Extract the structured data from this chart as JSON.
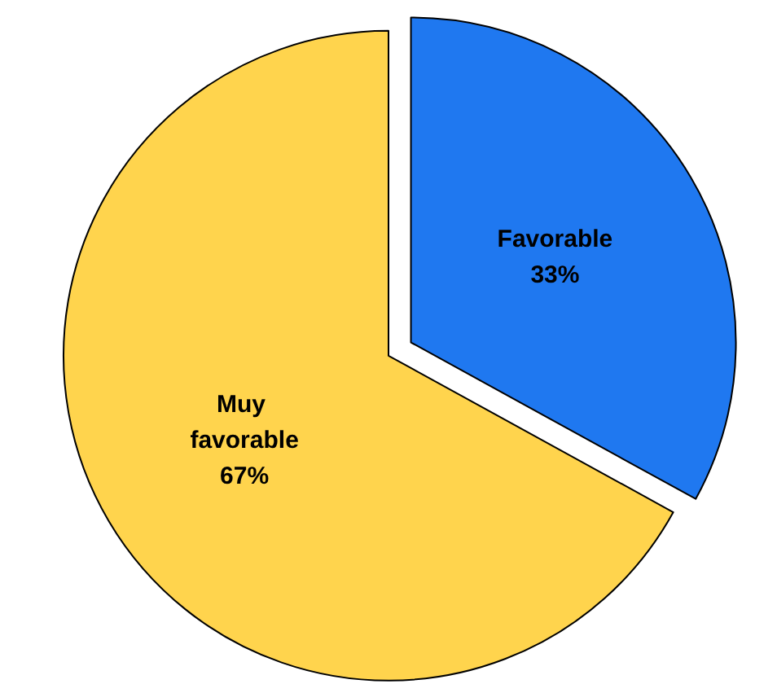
{
  "chart_data": {
    "type": "pie",
    "categories": [
      "Favorable",
      "Muy favorable"
    ],
    "values": [
      33,
      67
    ],
    "colors": [
      "#1f78f0",
      "#ffd44d"
    ],
    "value_labels": [
      "33%",
      "67%"
    ],
    "legend": false
  }
}
